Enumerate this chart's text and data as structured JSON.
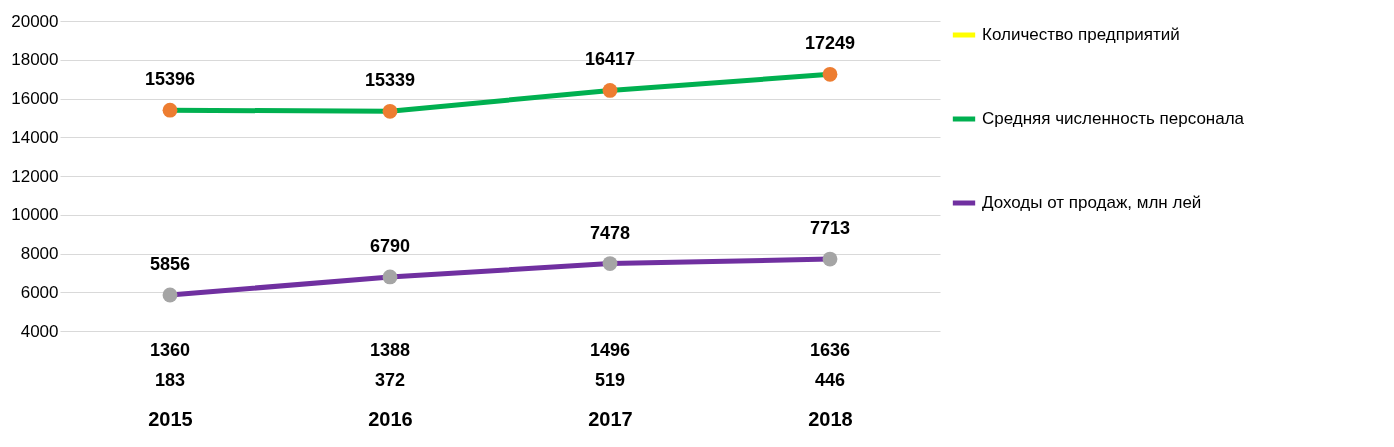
{
  "chart_data": {
    "type": "line",
    "categories": [
      "2015",
      "2016",
      "2017",
      "2018"
    ],
    "series": [
      {
        "name": "Количество предприятий",
        "color": "#ffff00",
        "colors": [
          "#4472c4",
          "#4472c4",
          "#4472c4",
          "#4472c4"
        ],
        "values": [
          null,
          null,
          null,
          null
        ]
      },
      {
        "name": "Средняя численность персонала",
        "color": "#00b050",
        "colors": [
          "#ed7d31",
          "#ed7d31",
          "#ed7d31",
          "#ed7d31"
        ],
        "values": [
          15396,
          15339,
          16417,
          17249
        ]
      },
      {
        "name": "Доходы от продаж, млн лей",
        "color": "#7030a0",
        "colors": [
          "#a5a5a5",
          "#a5a5a5",
          "#a5a5a5",
          "#a5a5a5"
        ],
        "values": [
          5856,
          6790,
          7478,
          7713
        ]
      }
    ],
    "ylim": [
      4000,
      20000
    ],
    "yticks": [
      4000,
      6000,
      8000,
      10000,
      12000,
      14000,
      16000,
      18000,
      20000
    ],
    "grid": "y",
    "legend": "right",
    "marker": "circle",
    "line_style": "solid",
    "data_labels": true,
    "annotations": [
      "1360",
      "1388",
      "1496",
      "1636",
      "183",
      "372",
      "519",
      "446"
    ]
  }
}
